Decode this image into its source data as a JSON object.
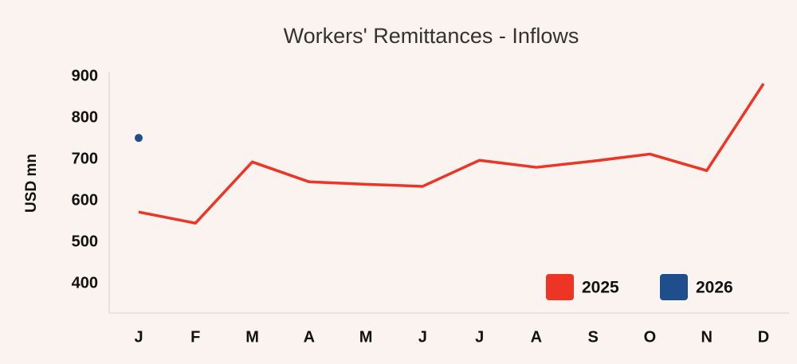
{
  "chart_data": {
    "type": "line",
    "title": "Workers' Remittances  - Inflows",
    "y_label": "USD mn",
    "categories": [
      "J",
      "F",
      "M",
      "A",
      "M",
      "J",
      "J",
      "A",
      "S",
      "O",
      "N",
      "D"
    ],
    "series": [
      {
        "name": "2025",
        "color": "#ee3424",
        "values": [
          573,
          546,
          694,
          646,
          640,
          635,
          698,
          681,
          696,
          713,
          673,
          883
        ]
      },
      {
        "name": "2026",
        "color": "#1f4e8c",
        "values": [
          752,
          null,
          null,
          null,
          null,
          null,
          null,
          null,
          null,
          null,
          null,
          null
        ]
      }
    ],
    "ylim": [
      329,
      912
    ],
    "yticks": [
      400,
      500,
      600,
      700,
      800,
      900
    ],
    "grid": false,
    "legend": "lower right"
  }
}
